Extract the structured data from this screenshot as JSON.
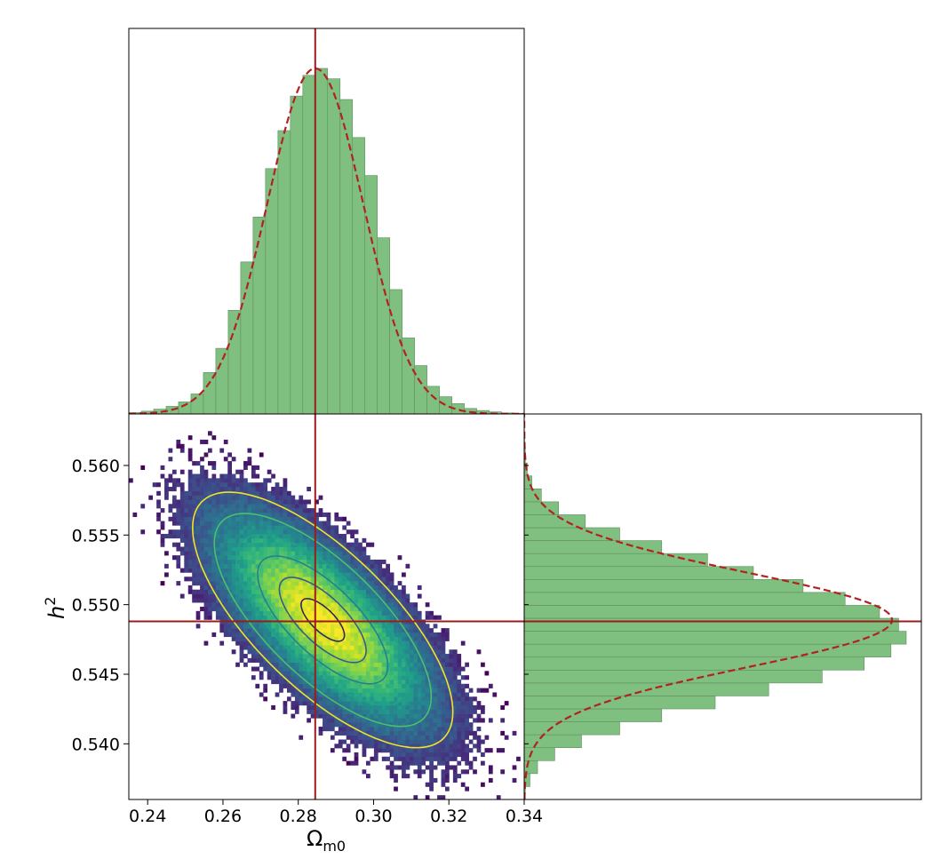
{
  "chart_data": {
    "type": "corner-plot",
    "xlabel": {
      "base": "Ω",
      "sub": "m0"
    },
    "ylabel": {
      "base": "h",
      "sup": "2"
    },
    "x_ticks": [
      "0.24",
      "0.26",
      "0.28",
      "0.30",
      "0.32",
      "0.34"
    ],
    "x_tick_values": [
      0.24,
      0.26,
      0.28,
      0.3,
      0.32,
      0.34
    ],
    "y_ticks": [
      "0.540",
      "0.545",
      "0.550",
      "0.555",
      "0.560"
    ],
    "y_tick_values": [
      0.54,
      0.545,
      0.55,
      0.555,
      0.56
    ],
    "xlim": [
      0.235,
      0.34
    ],
    "ylim": [
      0.536,
      0.5637
    ],
    "truth": {
      "x": 0.2845,
      "y": 0.5488
    },
    "colors": {
      "hist_fill": "#7fbf7f",
      "hist_edge": "#5f8f5f",
      "fit_line": "#b22222",
      "truth_line": "#9b1c1c",
      "contour_outer": "#f2e32a",
      "contour_inner": "#2e2a5e"
    },
    "x_histogram": {
      "bin_start": 0.235,
      "bin_width": 0.0033,
      "counts": [
        0.004,
        0.008,
        0.014,
        0.022,
        0.035,
        0.058,
        0.12,
        0.19,
        0.3,
        0.44,
        0.57,
        0.71,
        0.82,
        0.92,
        0.98,
        1.0,
        0.97,
        0.91,
        0.8,
        0.69,
        0.51,
        0.36,
        0.22,
        0.14,
        0.08,
        0.05,
        0.03,
        0.016,
        0.01,
        0.006,
        0.003,
        0.002
      ],
      "fit": {
        "mean": 0.2845,
        "sigma": 0.0128
      }
    },
    "y_histogram": {
      "bin_start": 0.536,
      "bin_width": 0.00093,
      "counts": [
        0.003,
        0.015,
        0.035,
        0.08,
        0.15,
        0.25,
        0.36,
        0.5,
        0.64,
        0.78,
        0.89,
        0.96,
        1.0,
        0.98,
        0.93,
        0.84,
        0.73,
        0.6,
        0.48,
        0.36,
        0.25,
        0.16,
        0.09,
        0.045,
        0.02,
        0.008,
        0.003,
        0.001,
        0.0,
        0.0
      ],
      "fit": {
        "mean": 0.5489,
        "sigma": 0.0034
      }
    },
    "density_2d": {
      "center": [
        0.2865,
        0.5489
      ],
      "sigma_x": 0.0128,
      "sigma_y": 0.0034,
      "correlation": -0.72,
      "bins_x": 100,
      "bins_y": 90
    },
    "contour_levels_sigma": [
      0.45,
      0.9,
      1.35,
      1.8,
      2.25,
      2.7
    ]
  }
}
